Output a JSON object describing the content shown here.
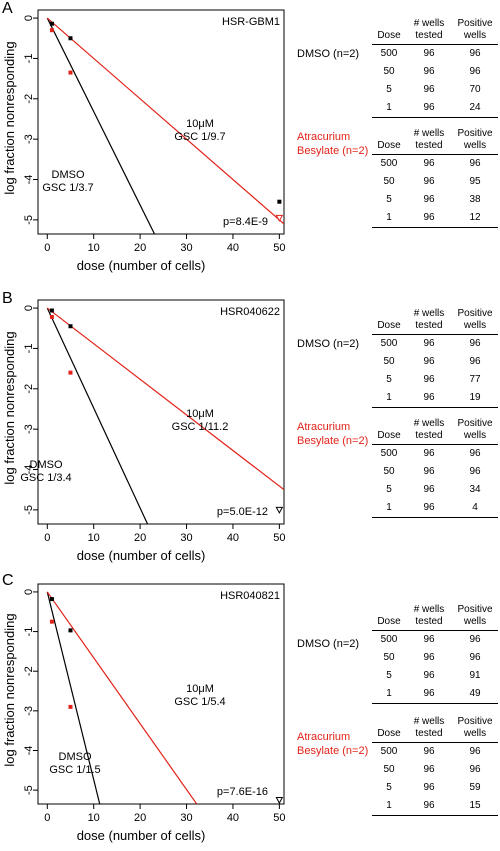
{
  "chart_data": [
    {
      "type": "scatter",
      "panel": "A",
      "cell_line": "HSR-GBM1",
      "xlabel": "dose (number of cells)",
      "ylabel": "log fraction nonresponding",
      "xlim": [
        -2,
        51
      ],
      "ylim": [
        -5.35,
        0.2
      ],
      "xticks": [
        0,
        10,
        20,
        30,
        40,
        50
      ],
      "yticks": [
        0,
        -1,
        -2,
        -3,
        -4,
        -5
      ],
      "pvalue": "p=8.4E-9",
      "lines": [
        {
          "label1": "DMSO",
          "label2": "GSC 1/3.7",
          "color": "#000000",
          "x": [
            0,
            23.1
          ],
          "y": [
            0,
            -5.35
          ]
        },
        {
          "label1": "10μM",
          "label2": "GSC 1/9.7",
          "color": "#e2231a",
          "x": [
            0,
            51
          ],
          "y": [
            0,
            -5.1
          ]
        }
      ],
      "points": [
        {
          "color": "#000000",
          "marker": "square",
          "x": [
            1,
            5,
            50
          ],
          "y": [
            -0.14,
            -0.5,
            -4.55
          ]
        },
        {
          "color": "#e2231a",
          "marker": "square",
          "x": [
            1,
            5
          ],
          "y": [
            -0.3,
            -1.35
          ]
        },
        {
          "color": "#e2231a",
          "marker": "triangle-down",
          "x": [
            50
          ],
          "y": [
            -4.95
          ]
        }
      ]
    },
    {
      "type": "scatter",
      "panel": "B",
      "cell_line": "HSR040622",
      "xlabel": "dose (number of cells)",
      "ylabel": "log fraction nonresponding",
      "xlim": [
        -2,
        51
      ],
      "ylim": [
        -5.35,
        0.2
      ],
      "xticks": [
        0,
        10,
        20,
        30,
        40,
        50
      ],
      "yticks": [
        0,
        -1,
        -2,
        -3,
        -4,
        -5
      ],
      "pvalue": "p=5.0E-12",
      "lines": [
        {
          "label1": "DMSO",
          "label2": "GSC 1/3.4",
          "color": "#000000",
          "x": [
            0,
            21.6
          ],
          "y": [
            0,
            -5.35
          ]
        },
        {
          "label1": "10μM",
          "label2": "GSC 1/11.2",
          "color": "#e2231a",
          "x": [
            0,
            51
          ],
          "y": [
            0,
            -4.5
          ]
        }
      ],
      "points": [
        {
          "color": "#000000",
          "marker": "square",
          "x": [
            1,
            5
          ],
          "y": [
            -0.06,
            -0.45
          ]
        },
        {
          "color": "#e2231a",
          "marker": "square",
          "x": [
            1,
            5
          ],
          "y": [
            -0.22,
            -1.6
          ]
        },
        {
          "color": "#000000",
          "marker": "triangle-down",
          "x": [
            50
          ],
          "y": [
            -5.0
          ]
        }
      ]
    },
    {
      "type": "scatter",
      "panel": "C",
      "cell_line": "HSR040821",
      "xlabel": "dose (number of cells)",
      "ylabel": "log fraction nonresponding",
      "xlim": [
        -2,
        51
      ],
      "ylim": [
        -5.35,
        0.2
      ],
      "xticks": [
        0,
        10,
        20,
        30,
        40,
        50
      ],
      "yticks": [
        0,
        -1,
        -2,
        -3,
        -4,
        -5
      ],
      "pvalue": "p=7.6E-16",
      "lines": [
        {
          "label1": "DMSO",
          "label2": "GSC 1/1.5",
          "color": "#000000",
          "x": [
            0,
            11.3
          ],
          "y": [
            0,
            -5.35
          ]
        },
        {
          "label1": "10μM",
          "label2": "GSC 1/5.4",
          "color": "#e2231a",
          "x": [
            0,
            32.2
          ],
          "y": [
            0,
            -5.35
          ]
        }
      ],
      "points": [
        {
          "color": "#000000",
          "marker": "square",
          "x": [
            1,
            5
          ],
          "y": [
            -0.18,
            -0.97
          ]
        },
        {
          "color": "#e2231a",
          "marker": "square",
          "x": [
            1,
            5
          ],
          "y": [
            -0.75,
            -2.9
          ]
        },
        {
          "color": "#000000",
          "marker": "triangle-down",
          "x": [
            50
          ],
          "y": [
            -5.25
          ]
        }
      ]
    }
  ],
  "tables": [
    {
      "dmso_label": "DMSO (n=2)",
      "drug_label_1": "Atracurium",
      "drug_label_2": "Besylate (n=2)",
      "header": [
        "Dose",
        "# wells tested",
        "Positive wells"
      ],
      "dmso_rows": [
        [
          "500",
          "96",
          "96"
        ],
        [
          "50",
          "96",
          "96"
        ],
        [
          "5",
          "96",
          "70"
        ],
        [
          "1",
          "96",
          "24"
        ]
      ],
      "drug_rows": [
        [
          "500",
          "96",
          "96"
        ],
        [
          "50",
          "96",
          "95"
        ],
        [
          "5",
          "96",
          "38"
        ],
        [
          "1",
          "96",
          "12"
        ]
      ]
    },
    {
      "dmso_label": "DMSO (n=2)",
      "drug_label_1": "Atracurium",
      "drug_label_2": "Besylate (n=2)",
      "header": [
        "Dose",
        "# wells tested",
        "Positive wells"
      ],
      "dmso_rows": [
        [
          "500",
          "96",
          "96"
        ],
        [
          "50",
          "96",
          "96"
        ],
        [
          "5",
          "96",
          "77"
        ],
        [
          "1",
          "96",
          "19"
        ]
      ],
      "drug_rows": [
        [
          "500",
          "96",
          "96"
        ],
        [
          "50",
          "96",
          "96"
        ],
        [
          "5",
          "96",
          "34"
        ],
        [
          "1",
          "96",
          "4"
        ]
      ]
    },
    {
      "dmso_label": "DMSO (n=2)",
      "drug_label_1": "Atracurium",
      "drug_label_2": "Besylate (n=2)",
      "header": [
        "Dose",
        "# wells tested",
        "Positive wells"
      ],
      "dmso_rows": [
        [
          "500",
          "96",
          "96"
        ],
        [
          "50",
          "96",
          "96"
        ],
        [
          "5",
          "96",
          "91"
        ],
        [
          "1",
          "96",
          "49"
        ]
      ],
      "drug_rows": [
        [
          "500",
          "96",
          "96"
        ],
        [
          "50",
          "96",
          "96"
        ],
        [
          "5",
          "96",
          "59"
        ],
        [
          "1",
          "96",
          "15"
        ]
      ]
    }
  ]
}
